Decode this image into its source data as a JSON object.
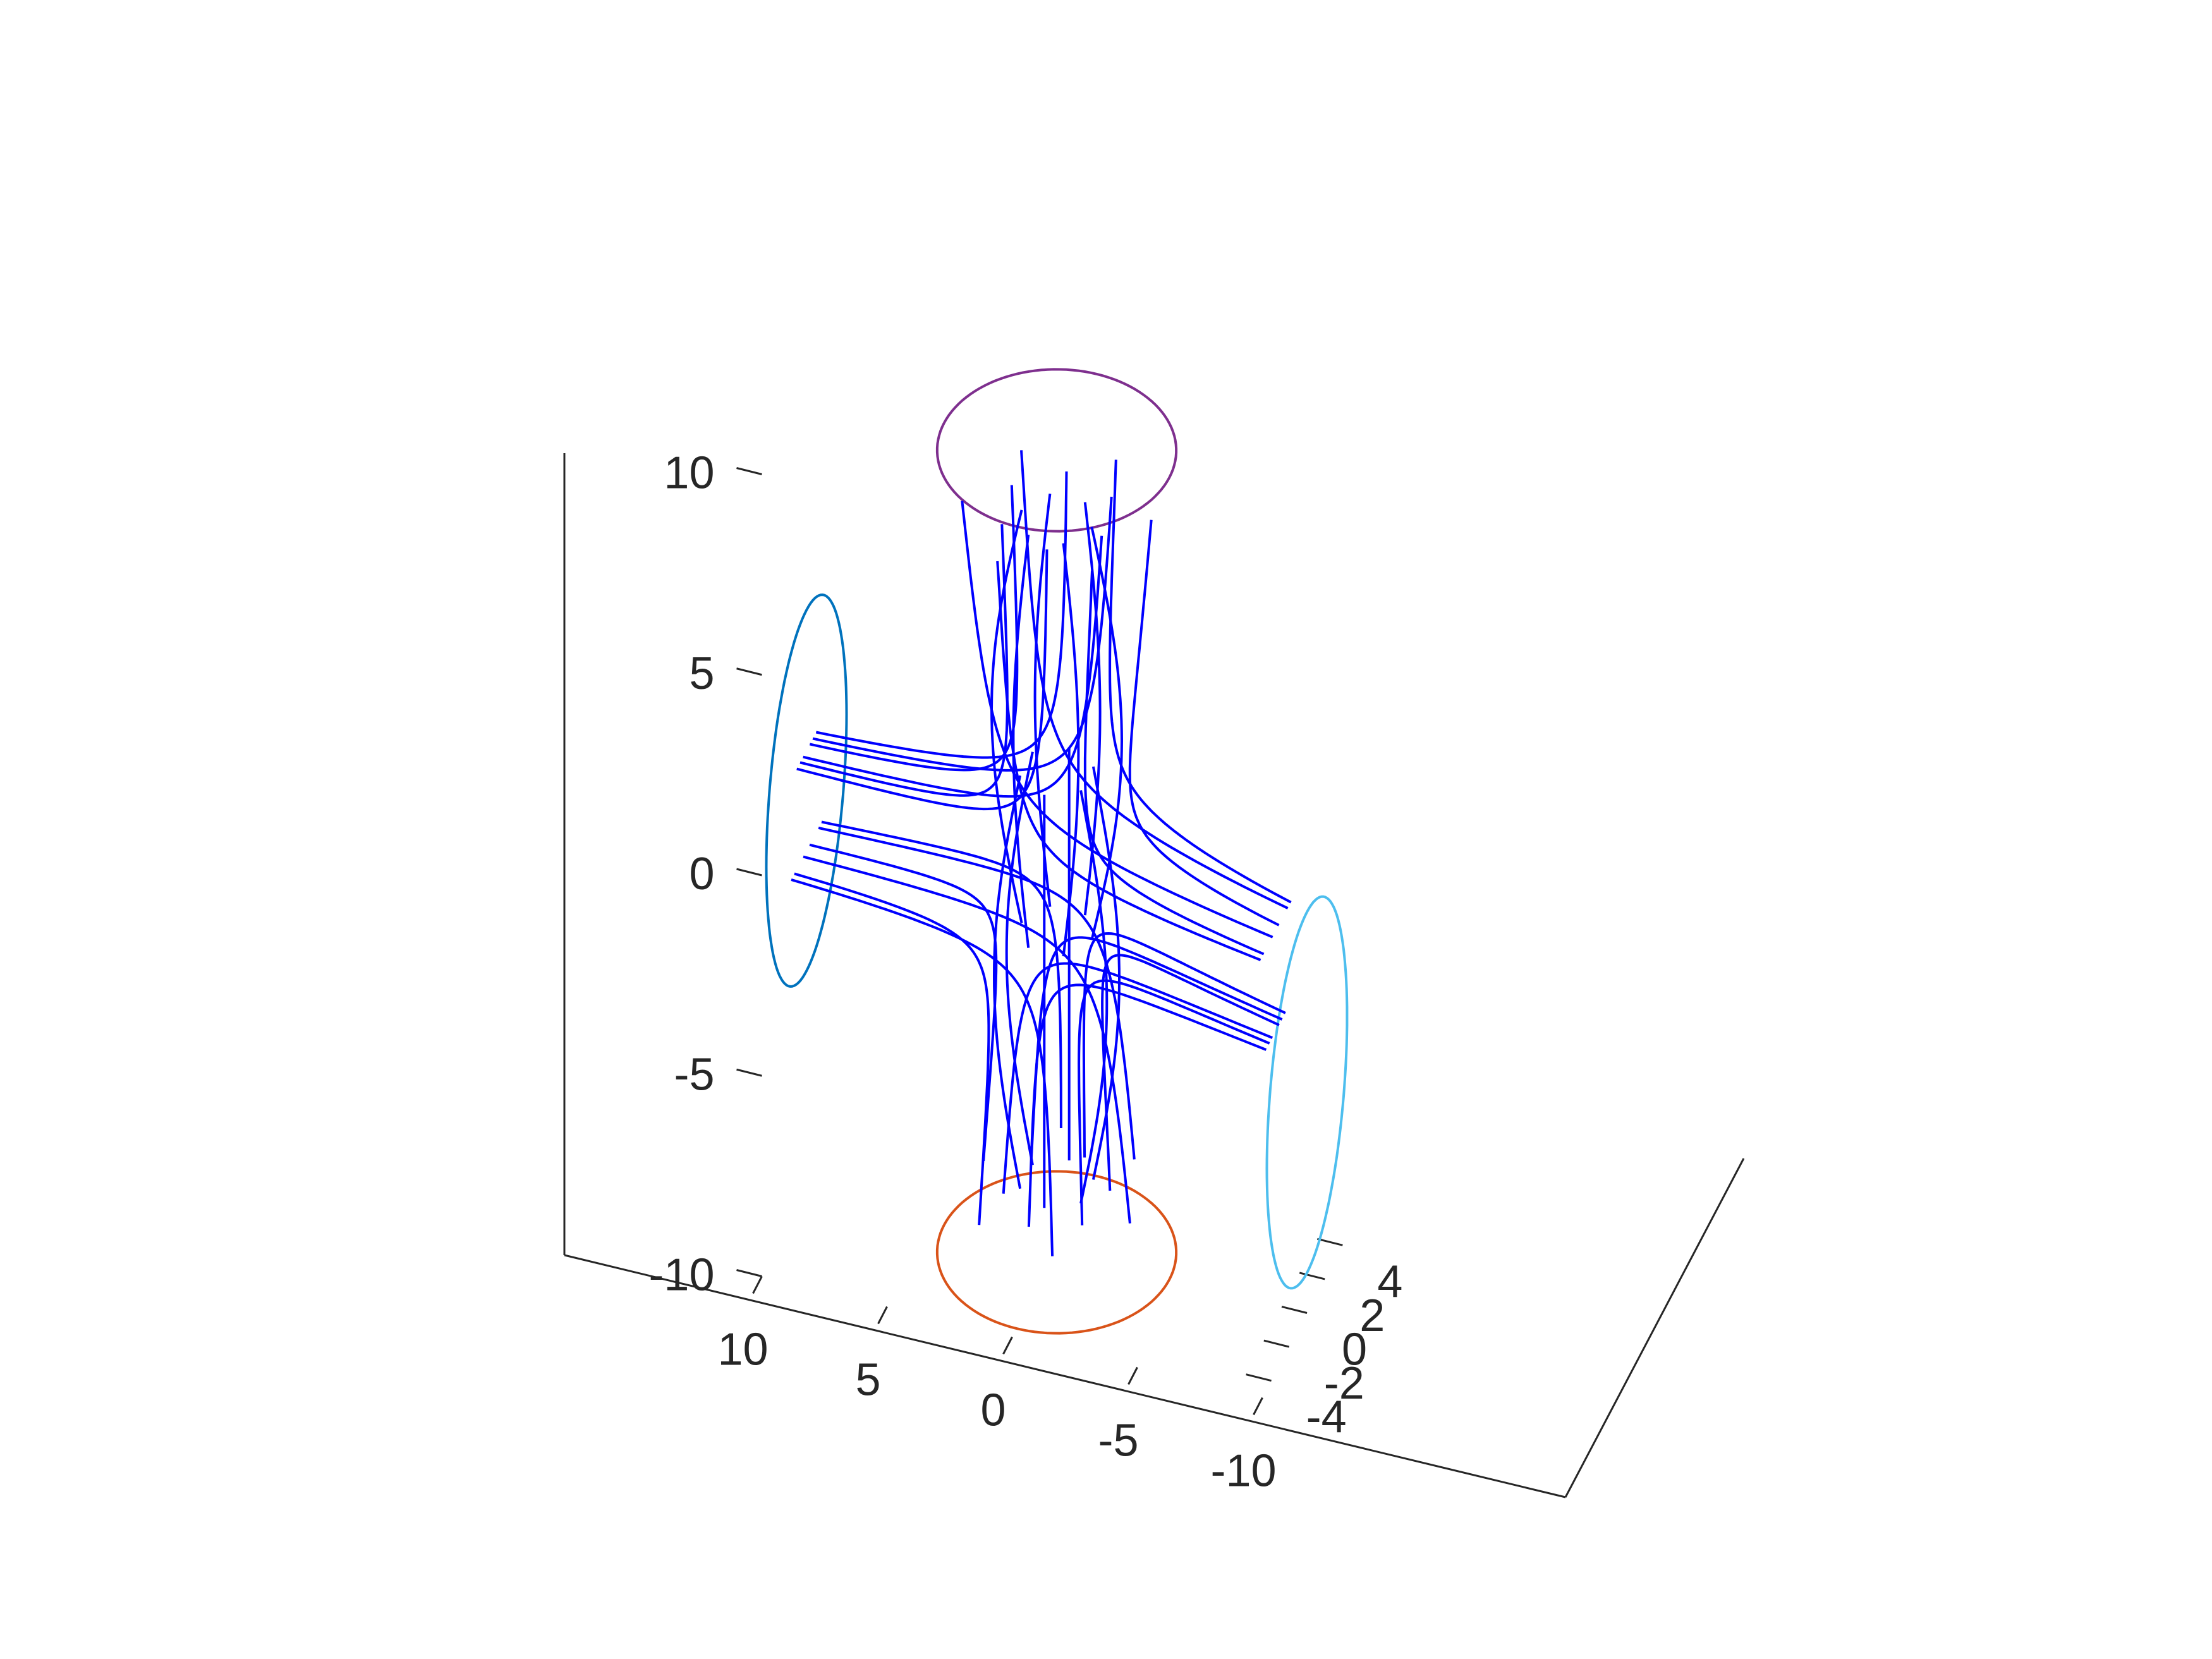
{
  "chart_data": {
    "type": "line",
    "title": "",
    "xlabel": "",
    "ylabel": "",
    "zlabel": "",
    "grid": false,
    "axes": {
      "x": {
        "range": [
          -10,
          10
        ],
        "ticks": [
          10,
          5,
          0,
          -5,
          -10
        ],
        "tick_labels": [
          "10",
          "5",
          "0",
          "-5",
          "-10"
        ]
      },
      "y": {
        "range": [
          -5,
          5
        ],
        "ticks": [
          -4,
          -2,
          0,
          2,
          4
        ],
        "tick_labels": [
          "-4",
          "-2",
          "0",
          "2",
          "4"
        ]
      },
      "z": {
        "range": [
          -10,
          10
        ],
        "ticks": [
          -10,
          -5,
          0,
          5,
          10
        ],
        "tick_labels": [
          "-10",
          "-5",
          "0",
          "5",
          "10"
        ]
      }
    },
    "circles": [
      {
        "name": "",
        "color": "#0072BD",
        "center": [
          10,
          0,
          0
        ],
        "plane": "x",
        "radius": 4.5
      },
      {
        "name": "",
        "color": "#4DBEEE",
        "center": [
          -10,
          0,
          -4.5
        ],
        "plane": "x",
        "radius": 4.5
      },
      {
        "name": "",
        "color": "#7E2F8E",
        "center": [
          0,
          0,
          10
        ],
        "plane": "z",
        "radius": 4.5
      },
      {
        "name": "",
        "color": "#D95319",
        "center": [
          0,
          0,
          -10
        ],
        "plane": "z",
        "radius": 4.5
      }
    ],
    "streamlines": {
      "color": "#0000FF",
      "count": 36
    }
  }
}
